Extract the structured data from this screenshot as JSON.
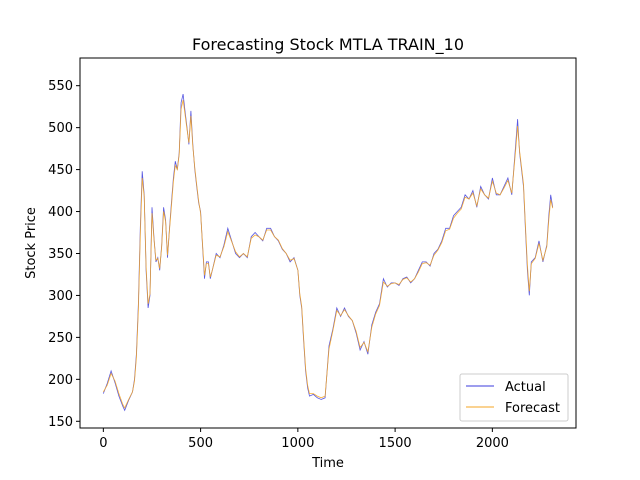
{
  "chart_data": {
    "type": "line",
    "title": "Forecasting Stock MTLA TRAIN_10",
    "xlabel": "Time",
    "ylabel": "Stock Price",
    "xlim": [
      -120,
      2430
    ],
    "ylim": [
      142,
      583
    ],
    "x_ticks": [
      0,
      500,
      1000,
      1500,
      2000
    ],
    "y_ticks": [
      150,
      200,
      250,
      300,
      350,
      400,
      450,
      500,
      550
    ],
    "grid": false,
    "legend_position": "lower-right",
    "series": [
      {
        "name": "Actual",
        "color": "#3b3bdc",
        "points": [
          [
            0,
            183
          ],
          [
            20,
            195
          ],
          [
            40,
            210
          ],
          [
            60,
            196
          ],
          [
            80,
            180
          ],
          [
            100,
            168
          ],
          [
            110,
            163
          ],
          [
            130,
            175
          ],
          [
            150,
            185
          ],
          [
            160,
            200
          ],
          [
            170,
            230
          ],
          [
            180,
            290
          ],
          [
            190,
            380
          ],
          [
            200,
            448
          ],
          [
            210,
            420
          ],
          [
            220,
            330
          ],
          [
            230,
            285
          ],
          [
            240,
            300
          ],
          [
            250,
            405
          ],
          [
            260,
            370
          ],
          [
            270,
            340
          ],
          [
            280,
            345
          ],
          [
            290,
            330
          ],
          [
            300,
            360
          ],
          [
            310,
            405
          ],
          [
            320,
            390
          ],
          [
            330,
            345
          ],
          [
            340,
            380
          ],
          [
            350,
            410
          ],
          [
            360,
            440
          ],
          [
            370,
            460
          ],
          [
            380,
            450
          ],
          [
            390,
            470
          ],
          [
            400,
            530
          ],
          [
            410,
            540
          ],
          [
            420,
            520
          ],
          [
            430,
            500
          ],
          [
            440,
            480
          ],
          [
            450,
            520
          ],
          [
            460,
            480
          ],
          [
            470,
            450
          ],
          [
            480,
            430
          ],
          [
            490,
            410
          ],
          [
            500,
            400
          ],
          [
            510,
            360
          ],
          [
            520,
            320
          ],
          [
            530,
            340
          ],
          [
            540,
            340
          ],
          [
            550,
            320
          ],
          [
            560,
            330
          ],
          [
            580,
            350
          ],
          [
            600,
            345
          ],
          [
            620,
            360
          ],
          [
            640,
            380
          ],
          [
            660,
            365
          ],
          [
            680,
            350
          ],
          [
            700,
            345
          ],
          [
            720,
            350
          ],
          [
            740,
            345
          ],
          [
            760,
            370
          ],
          [
            780,
            375
          ],
          [
            800,
            370
          ],
          [
            820,
            365
          ],
          [
            840,
            380
          ],
          [
            860,
            380
          ],
          [
            880,
            370
          ],
          [
            900,
            365
          ],
          [
            920,
            355
          ],
          [
            940,
            350
          ],
          [
            960,
            340
          ],
          [
            980,
            345
          ],
          [
            1000,
            330
          ],
          [
            1010,
            300
          ],
          [
            1020,
            285
          ],
          [
            1030,
            245
          ],
          [
            1040,
            210
          ],
          [
            1050,
            190
          ],
          [
            1060,
            180
          ],
          [
            1080,
            182
          ],
          [
            1100,
            178
          ],
          [
            1120,
            176
          ],
          [
            1140,
            178
          ],
          [
            1160,
            240
          ],
          [
            1180,
            260
          ],
          [
            1200,
            285
          ],
          [
            1220,
            275
          ],
          [
            1240,
            285
          ],
          [
            1260,
            275
          ],
          [
            1280,
            270
          ],
          [
            1300,
            255
          ],
          [
            1320,
            235
          ],
          [
            1340,
            245
          ],
          [
            1360,
            230
          ],
          [
            1380,
            265
          ],
          [
            1400,
            280
          ],
          [
            1420,
            290
          ],
          [
            1440,
            320
          ],
          [
            1460,
            310
          ],
          [
            1480,
            315
          ],
          [
            1500,
            315
          ],
          [
            1520,
            312
          ],
          [
            1540,
            320
          ],
          [
            1560,
            322
          ],
          [
            1580,
            315
          ],
          [
            1600,
            320
          ],
          [
            1620,
            330
          ],
          [
            1640,
            340
          ],
          [
            1660,
            340
          ],
          [
            1680,
            335
          ],
          [
            1700,
            350
          ],
          [
            1720,
            355
          ],
          [
            1740,
            365
          ],
          [
            1760,
            380
          ],
          [
            1780,
            380
          ],
          [
            1800,
            395
          ],
          [
            1820,
            400
          ],
          [
            1840,
            405
          ],
          [
            1860,
            420
          ],
          [
            1880,
            415
          ],
          [
            1900,
            425
          ],
          [
            1920,
            405
          ],
          [
            1940,
            430
          ],
          [
            1960,
            420
          ],
          [
            1980,
            415
          ],
          [
            2000,
            440
          ],
          [
            2020,
            420
          ],
          [
            2040,
            420
          ],
          [
            2060,
            430
          ],
          [
            2080,
            440
          ],
          [
            2100,
            420
          ],
          [
            2120,
            480
          ],
          [
            2130,
            510
          ],
          [
            2140,
            470
          ],
          [
            2160,
            430
          ],
          [
            2170,
            380
          ],
          [
            2180,
            330
          ],
          [
            2190,
            300
          ],
          [
            2200,
            340
          ],
          [
            2220,
            345
          ],
          [
            2240,
            365
          ],
          [
            2260,
            340
          ],
          [
            2280,
            360
          ],
          [
            2290,
            395
          ],
          [
            2300,
            420
          ],
          [
            2310,
            405
          ]
        ]
      },
      {
        "name": "Forecast",
        "color": "#f5a623",
        "points": [
          [
            0,
            185
          ],
          [
            20,
            193
          ],
          [
            40,
            207
          ],
          [
            60,
            198
          ],
          [
            80,
            183
          ],
          [
            100,
            170
          ],
          [
            110,
            166
          ],
          [
            130,
            176
          ],
          [
            150,
            185
          ],
          [
            160,
            198
          ],
          [
            170,
            226
          ],
          [
            180,
            284
          ],
          [
            190,
            372
          ],
          [
            200,
            440
          ],
          [
            210,
            418
          ],
          [
            220,
            334
          ],
          [
            230,
            290
          ],
          [
            240,
            302
          ],
          [
            250,
            398
          ],
          [
            260,
            368
          ],
          [
            270,
            342
          ],
          [
            280,
            344
          ],
          [
            290,
            332
          ],
          [
            300,
            358
          ],
          [
            310,
            400
          ],
          [
            320,
            388
          ],
          [
            330,
            348
          ],
          [
            340,
            378
          ],
          [
            350,
            406
          ],
          [
            360,
            436
          ],
          [
            370,
            455
          ],
          [
            380,
            450
          ],
          [
            390,
            468
          ],
          [
            400,
            522
          ],
          [
            410,
            533
          ],
          [
            420,
            516
          ],
          [
            430,
            498
          ],
          [
            440,
            482
          ],
          [
            450,
            514
          ],
          [
            460,
            478
          ],
          [
            470,
            452
          ],
          [
            480,
            432
          ],
          [
            490,
            412
          ],
          [
            500,
            398
          ],
          [
            510,
            362
          ],
          [
            520,
            324
          ],
          [
            530,
            338
          ],
          [
            540,
            338
          ],
          [
            550,
            322
          ],
          [
            560,
            330
          ],
          [
            580,
            348
          ],
          [
            600,
            346
          ],
          [
            620,
            358
          ],
          [
            640,
            376
          ],
          [
            660,
            364
          ],
          [
            680,
            352
          ],
          [
            700,
            346
          ],
          [
            720,
            350
          ],
          [
            740,
            346
          ],
          [
            760,
            368
          ],
          [
            780,
            372
          ],
          [
            800,
            370
          ],
          [
            820,
            366
          ],
          [
            840,
            378
          ],
          [
            860,
            378
          ],
          [
            880,
            370
          ],
          [
            900,
            366
          ],
          [
            920,
            356
          ],
          [
            940,
            350
          ],
          [
            960,
            342
          ],
          [
            980,
            344
          ],
          [
            1000,
            330
          ],
          [
            1010,
            302
          ],
          [
            1020,
            287
          ],
          [
            1030,
            248
          ],
          [
            1040,
            213
          ],
          [
            1050,
            193
          ],
          [
            1060,
            183
          ],
          [
            1080,
            183
          ],
          [
            1100,
            180
          ],
          [
            1120,
            178
          ],
          [
            1140,
            180
          ],
          [
            1160,
            236
          ],
          [
            1180,
            258
          ],
          [
            1200,
            282
          ],
          [
            1220,
            276
          ],
          [
            1240,
            283
          ],
          [
            1260,
            276
          ],
          [
            1280,
            270
          ],
          [
            1300,
            257
          ],
          [
            1320,
            238
          ],
          [
            1340,
            244
          ],
          [
            1360,
            233
          ],
          [
            1380,
            262
          ],
          [
            1400,
            278
          ],
          [
            1420,
            288
          ],
          [
            1440,
            316
          ],
          [
            1460,
            311
          ],
          [
            1480,
            314
          ],
          [
            1500,
            315
          ],
          [
            1520,
            313
          ],
          [
            1540,
            319
          ],
          [
            1560,
            321
          ],
          [
            1580,
            316
          ],
          [
            1600,
            320
          ],
          [
            1620,
            328
          ],
          [
            1640,
            338
          ],
          [
            1660,
            339
          ],
          [
            1680,
            336
          ],
          [
            1700,
            348
          ],
          [
            1720,
            354
          ],
          [
            1740,
            363
          ],
          [
            1760,
            377
          ],
          [
            1780,
            379
          ],
          [
            1800,
            392
          ],
          [
            1820,
            398
          ],
          [
            1840,
            403
          ],
          [
            1860,
            417
          ],
          [
            1880,
            415
          ],
          [
            1900,
            422
          ],
          [
            1920,
            407
          ],
          [
            1940,
            427
          ],
          [
            1960,
            420
          ],
          [
            1980,
            416
          ],
          [
            2000,
            436
          ],
          [
            2020,
            422
          ],
          [
            2040,
            420
          ],
          [
            2060,
            428
          ],
          [
            2080,
            437
          ],
          [
            2100,
            422
          ],
          [
            2120,
            474
          ],
          [
            2130,
            502
          ],
          [
            2140,
            472
          ],
          [
            2160,
            433
          ],
          [
            2170,
            384
          ],
          [
            2180,
            336
          ],
          [
            2190,
            305
          ],
          [
            2200,
            338
          ],
          [
            2220,
            344
          ],
          [
            2240,
            362
          ],
          [
            2260,
            342
          ],
          [
            2280,
            358
          ],
          [
            2290,
            390
          ],
          [
            2300,
            414
          ],
          [
            2310,
            404
          ]
        ]
      }
    ]
  }
}
